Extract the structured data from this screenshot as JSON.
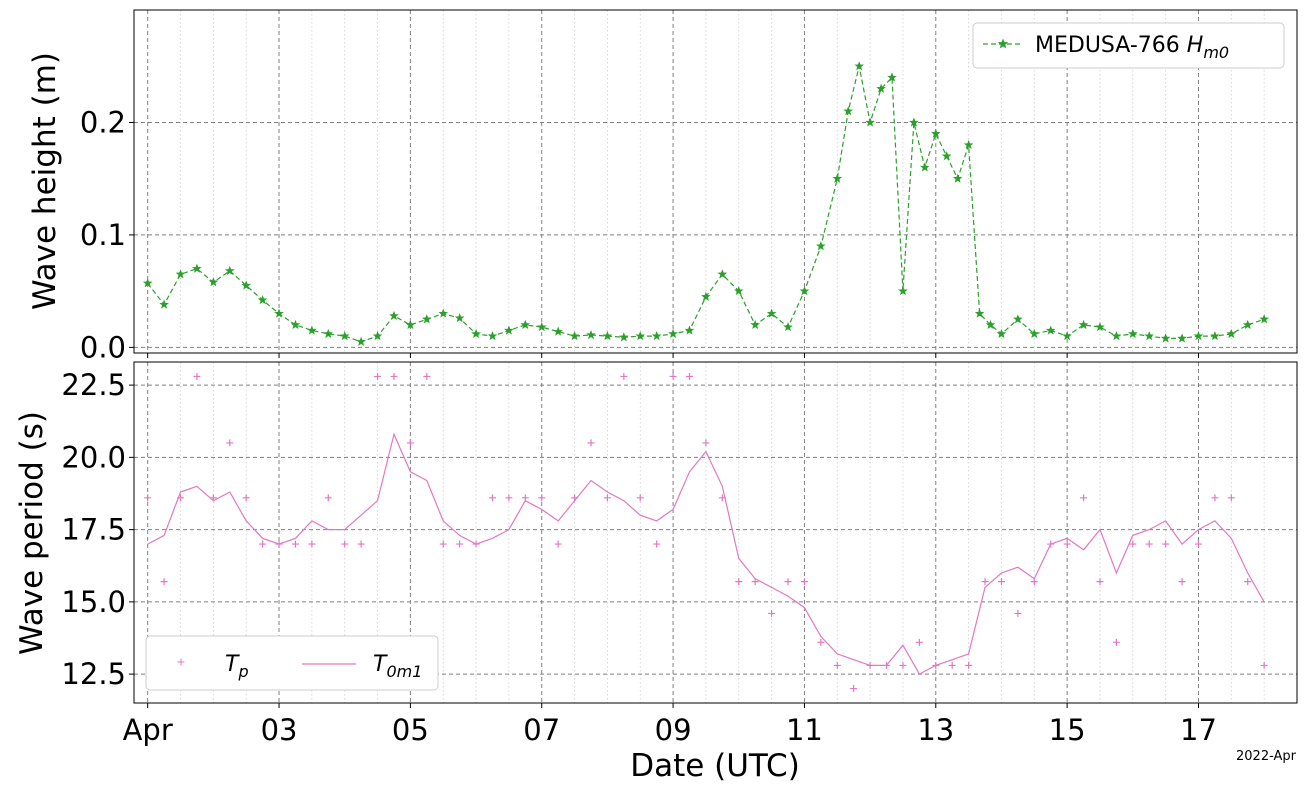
{
  "chart_data": [
    {
      "type": "line",
      "ylabel": "Wave height (m)",
      "xlabel": "",
      "xlim": [
        "2022-03-31T19:00",
        "2022-04-18T12:00"
      ],
      "ylim": [
        -0.005,
        0.3
      ],
      "yticks": [
        0.0,
        0.1,
        0.2
      ],
      "ytick_labels": [
        "0.0",
        "0.1",
        "0.2"
      ],
      "grid": "major dashed, minor dotted on x",
      "legend_position": "upper right",
      "series": [
        {
          "name": "MEDUSA-766 H_m0",
          "style": "dashed line with star markers",
          "color": "#2ca02c",
          "x": [
            "2022-04-01T00:00",
            "2022-04-01T06:00",
            "2022-04-01T12:00",
            "2022-04-01T18:00",
            "2022-04-02T00:00",
            "2022-04-02T06:00",
            "2022-04-02T12:00",
            "2022-04-02T18:00",
            "2022-04-03T00:00",
            "2022-04-03T06:00",
            "2022-04-03T12:00",
            "2022-04-03T18:00",
            "2022-04-04T00:00",
            "2022-04-04T06:00",
            "2022-04-04T12:00",
            "2022-04-04T18:00",
            "2022-04-05T00:00",
            "2022-04-05T06:00",
            "2022-04-05T12:00",
            "2022-04-05T18:00",
            "2022-04-06T00:00",
            "2022-04-06T06:00",
            "2022-04-06T12:00",
            "2022-04-06T18:00",
            "2022-04-07T00:00",
            "2022-04-07T06:00",
            "2022-04-07T12:00",
            "2022-04-07T18:00",
            "2022-04-08T00:00",
            "2022-04-08T06:00",
            "2022-04-08T12:00",
            "2022-04-08T18:00",
            "2022-04-09T00:00",
            "2022-04-09T06:00",
            "2022-04-09T12:00",
            "2022-04-09T18:00",
            "2022-04-10T00:00",
            "2022-04-10T06:00",
            "2022-04-10T12:00",
            "2022-04-10T18:00",
            "2022-04-11T00:00",
            "2022-04-11T06:00",
            "2022-04-11T12:00",
            "2022-04-11T16:00",
            "2022-04-11T20:00",
            "2022-04-12T00:00",
            "2022-04-12T04:00",
            "2022-04-12T08:00",
            "2022-04-12T12:00",
            "2022-04-12T16:00",
            "2022-04-12T20:00",
            "2022-04-13T00:00",
            "2022-04-13T04:00",
            "2022-04-13T08:00",
            "2022-04-13T12:00",
            "2022-04-13T16:00",
            "2022-04-13T20:00",
            "2022-04-14T00:00",
            "2022-04-14T06:00",
            "2022-04-14T12:00",
            "2022-04-14T18:00",
            "2022-04-15T00:00",
            "2022-04-15T06:00",
            "2022-04-15T12:00",
            "2022-04-15T18:00",
            "2022-04-16T00:00",
            "2022-04-16T06:00",
            "2022-04-16T12:00",
            "2022-04-16T18:00",
            "2022-04-17T00:00",
            "2022-04-17T06:00",
            "2022-04-17T12:00",
            "2022-04-17T18:00",
            "2022-04-18T00:00"
          ],
          "y": [
            0.057,
            0.038,
            0.065,
            0.07,
            0.058,
            0.068,
            0.055,
            0.042,
            0.03,
            0.02,
            0.015,
            0.012,
            0.01,
            0.005,
            0.01,
            0.028,
            0.02,
            0.025,
            0.03,
            0.026,
            0.012,
            0.01,
            0.015,
            0.02,
            0.018,
            0.014,
            0.01,
            0.011,
            0.01,
            0.009,
            0.01,
            0.01,
            0.012,
            0.015,
            0.045,
            0.065,
            0.05,
            0.02,
            0.03,
            0.018,
            0.05,
            0.09,
            0.15,
            0.21,
            0.25,
            0.2,
            0.23,
            0.24,
            0.05,
            0.2,
            0.16,
            0.19,
            0.17,
            0.15,
            0.18,
            0.03,
            0.02,
            0.012,
            0.025,
            0.012,
            0.015,
            0.01,
            0.02,
            0.018,
            0.01,
            0.012,
            0.01,
            0.008,
            0.008,
            0.01,
            0.01,
            0.012,
            0.02,
            0.025
          ]
        }
      ]
    },
    {
      "type": "line",
      "ylabel": "Wave period (s)",
      "xlabel": "Date (UTC)",
      "xlim": [
        "2022-03-31T19:00",
        "2022-04-18T12:00"
      ],
      "ylim": [
        11.5,
        23.3
      ],
      "yticks": [
        12.5,
        15.0,
        17.5,
        20.0,
        22.5
      ],
      "ytick_labels": [
        "12.5",
        "15.0",
        "17.5",
        "20.0",
        "22.5"
      ],
      "xticks": [
        "2022-04-01",
        "2022-04-03",
        "2022-04-05",
        "2022-04-07",
        "2022-04-09",
        "2022-04-11",
        "2022-04-13",
        "2022-04-15",
        "2022-04-17"
      ],
      "xtick_labels": [
        "Apr",
        "03",
        "05",
        "07",
        "09",
        "11",
        "13",
        "15",
        "17"
      ],
      "x_offset_label": "2022-Apr",
      "grid": "major dashed, minor dotted on x",
      "legend_position": "lower left",
      "series": [
        {
          "name": "T_p",
          "style": "markers only",
          "color": "#e377c2",
          "x": [
            "2022-04-01T00:00",
            "2022-04-01T06:00",
            "2022-04-01T12:00",
            "2022-04-01T18:00",
            "2022-04-02T00:00",
            "2022-04-02T06:00",
            "2022-04-02T12:00",
            "2022-04-02T18:00",
            "2022-04-03T00:00",
            "2022-04-03T06:00",
            "2022-04-03T12:00",
            "2022-04-03T18:00",
            "2022-04-04T00:00",
            "2022-04-04T06:00",
            "2022-04-04T12:00",
            "2022-04-04T18:00",
            "2022-04-05T00:00",
            "2022-04-05T06:00",
            "2022-04-05T12:00",
            "2022-04-05T18:00",
            "2022-04-06T00:00",
            "2022-04-06T06:00",
            "2022-04-06T12:00",
            "2022-04-06T18:00",
            "2022-04-07T00:00",
            "2022-04-07T06:00",
            "2022-04-07T12:00",
            "2022-04-07T18:00",
            "2022-04-08T00:00",
            "2022-04-08T06:00",
            "2022-04-08T12:00",
            "2022-04-08T18:00",
            "2022-04-09T00:00",
            "2022-04-09T06:00",
            "2022-04-09T12:00",
            "2022-04-09T18:00",
            "2022-04-10T00:00",
            "2022-04-10T06:00",
            "2022-04-10T12:00",
            "2022-04-10T18:00",
            "2022-04-11T00:00",
            "2022-04-11T06:00",
            "2022-04-11T12:00",
            "2022-04-11T18:00",
            "2022-04-12T00:00",
            "2022-04-12T06:00",
            "2022-04-12T12:00",
            "2022-04-12T18:00",
            "2022-04-13T00:00",
            "2022-04-13T06:00",
            "2022-04-13T12:00",
            "2022-04-13T18:00",
            "2022-04-14T00:00",
            "2022-04-14T06:00",
            "2022-04-14T12:00",
            "2022-04-14T18:00",
            "2022-04-15T00:00",
            "2022-04-15T06:00",
            "2022-04-15T12:00",
            "2022-04-15T18:00",
            "2022-04-16T00:00",
            "2022-04-16T06:00",
            "2022-04-16T12:00",
            "2022-04-16T18:00",
            "2022-04-17T00:00",
            "2022-04-17T06:00",
            "2022-04-17T12:00",
            "2022-04-17T18:00",
            "2022-04-18T00:00"
          ],
          "y": [
            18.6,
            15.7,
            18.6,
            22.8,
            18.6,
            20.5,
            18.6,
            17.0,
            17.0,
            17.0,
            17.0,
            18.6,
            17.0,
            17.0,
            22.8,
            22.8,
            20.5,
            22.8,
            17.0,
            17.0,
            17.0,
            18.6,
            18.6,
            18.6,
            18.6,
            17.0,
            18.6,
            20.5,
            18.6,
            22.8,
            18.6,
            17.0,
            22.8,
            22.8,
            20.5,
            18.6,
            15.7,
            15.7,
            14.6,
            15.7,
            15.7,
            13.6,
            12.8,
            12.0,
            12.8,
            12.8,
            12.8,
            13.6,
            12.8,
            12.8,
            12.8,
            15.7,
            15.7,
            14.6,
            15.7,
            17.0,
            17.0,
            18.6,
            15.7,
            13.6,
            17.0,
            17.0,
            17.0,
            15.7,
            17.0,
            18.6,
            18.6,
            15.7,
            12.8
          ]
        },
        {
          "name": "T_0m1",
          "style": "solid line",
          "color": "#e377c2",
          "x": [
            "2022-04-01T00:00",
            "2022-04-01T06:00",
            "2022-04-01T12:00",
            "2022-04-01T18:00",
            "2022-04-02T00:00",
            "2022-04-02T06:00",
            "2022-04-02T12:00",
            "2022-04-02T18:00",
            "2022-04-03T00:00",
            "2022-04-03T06:00",
            "2022-04-03T12:00",
            "2022-04-03T18:00",
            "2022-04-04T00:00",
            "2022-04-04T06:00",
            "2022-04-04T12:00",
            "2022-04-04T18:00",
            "2022-04-05T00:00",
            "2022-04-05T06:00",
            "2022-04-05T12:00",
            "2022-04-05T18:00",
            "2022-04-06T00:00",
            "2022-04-06T06:00",
            "2022-04-06T12:00",
            "2022-04-06T18:00",
            "2022-04-07T00:00",
            "2022-04-07T06:00",
            "2022-04-07T12:00",
            "2022-04-07T18:00",
            "2022-04-08T00:00",
            "2022-04-08T06:00",
            "2022-04-08T12:00",
            "2022-04-08T18:00",
            "2022-04-09T00:00",
            "2022-04-09T06:00",
            "2022-04-09T12:00",
            "2022-04-09T18:00",
            "2022-04-10T00:00",
            "2022-04-10T06:00",
            "2022-04-10T12:00",
            "2022-04-10T18:00",
            "2022-04-11T00:00",
            "2022-04-11T06:00",
            "2022-04-11T12:00",
            "2022-04-11T18:00",
            "2022-04-12T00:00",
            "2022-04-12T06:00",
            "2022-04-12T12:00",
            "2022-04-12T18:00",
            "2022-04-13T00:00",
            "2022-04-13T06:00",
            "2022-04-13T12:00",
            "2022-04-13T18:00",
            "2022-04-14T00:00",
            "2022-04-14T06:00",
            "2022-04-14T12:00",
            "2022-04-14T18:00",
            "2022-04-15T00:00",
            "2022-04-15T06:00",
            "2022-04-15T12:00",
            "2022-04-15T18:00",
            "2022-04-16T00:00",
            "2022-04-16T06:00",
            "2022-04-16T12:00",
            "2022-04-16T18:00",
            "2022-04-17T00:00",
            "2022-04-17T06:00",
            "2022-04-17T12:00",
            "2022-04-17T18:00",
            "2022-04-18T00:00"
          ],
          "y": [
            17.0,
            17.3,
            18.8,
            19.0,
            18.5,
            18.8,
            17.8,
            17.2,
            17.0,
            17.2,
            17.8,
            17.5,
            17.5,
            18.0,
            18.5,
            20.8,
            19.5,
            19.2,
            17.8,
            17.3,
            17.0,
            17.2,
            17.5,
            18.5,
            18.2,
            17.8,
            18.5,
            19.2,
            18.8,
            18.5,
            18.0,
            17.8,
            18.2,
            19.5,
            20.2,
            19.0,
            16.5,
            15.8,
            15.5,
            15.2,
            14.8,
            13.8,
            13.2,
            13.0,
            12.8,
            12.8,
            13.5,
            12.5,
            12.8,
            13.0,
            13.2,
            15.5,
            16.0,
            16.2,
            15.8,
            17.0,
            17.2,
            16.8,
            17.5,
            16.0,
            17.3,
            17.5,
            17.8,
            17.0,
            17.5,
            17.8,
            17.2,
            16.0,
            15.0
          ]
        }
      ]
    }
  ],
  "legend_top": {
    "label_prefix": "MEDUSA-766 ",
    "label_math": "H",
    "label_sub": "m0"
  },
  "legend_bottom": {
    "tp_math": "T",
    "tp_sub": "p",
    "t0_math": "T",
    "t0_sub": "0m1"
  },
  "colors": {
    "green": "#2ca02c",
    "pink": "#e377c2",
    "grid": "#808080"
  }
}
